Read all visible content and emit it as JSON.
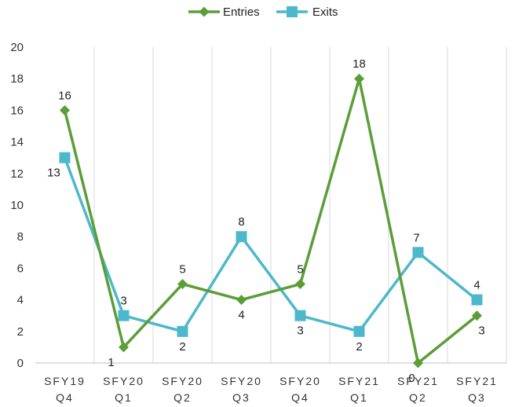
{
  "chart_data": {
    "type": "line",
    "categories": [
      [
        "SFY19",
        "Q4"
      ],
      [
        "SFY20",
        "Q1"
      ],
      [
        "SFY20",
        "Q2"
      ],
      [
        "SFY20",
        "Q3"
      ],
      [
        "SFY20",
        "Q4"
      ],
      [
        "SFY21",
        "Q1"
      ],
      [
        "SFY21",
        "Q2"
      ],
      [
        "SFY21",
        "Q3"
      ]
    ],
    "series": [
      {
        "name": "Entries",
        "values": [
          16,
          1,
          5,
          4,
          5,
          18,
          0,
          3
        ],
        "color": "#5b9e38",
        "marker": "diamond"
      },
      {
        "name": "Exits",
        "values": [
          13,
          3,
          2,
          8,
          3,
          2,
          7,
          4
        ],
        "color": "#4db8cc",
        "marker": "square"
      }
    ],
    "ylim": [
      0,
      20
    ],
    "yticks": [
      0,
      2,
      4,
      6,
      8,
      10,
      12,
      14,
      16,
      18,
      20
    ],
    "grid": "vertical",
    "legend": "top-center",
    "data_labels": true
  }
}
